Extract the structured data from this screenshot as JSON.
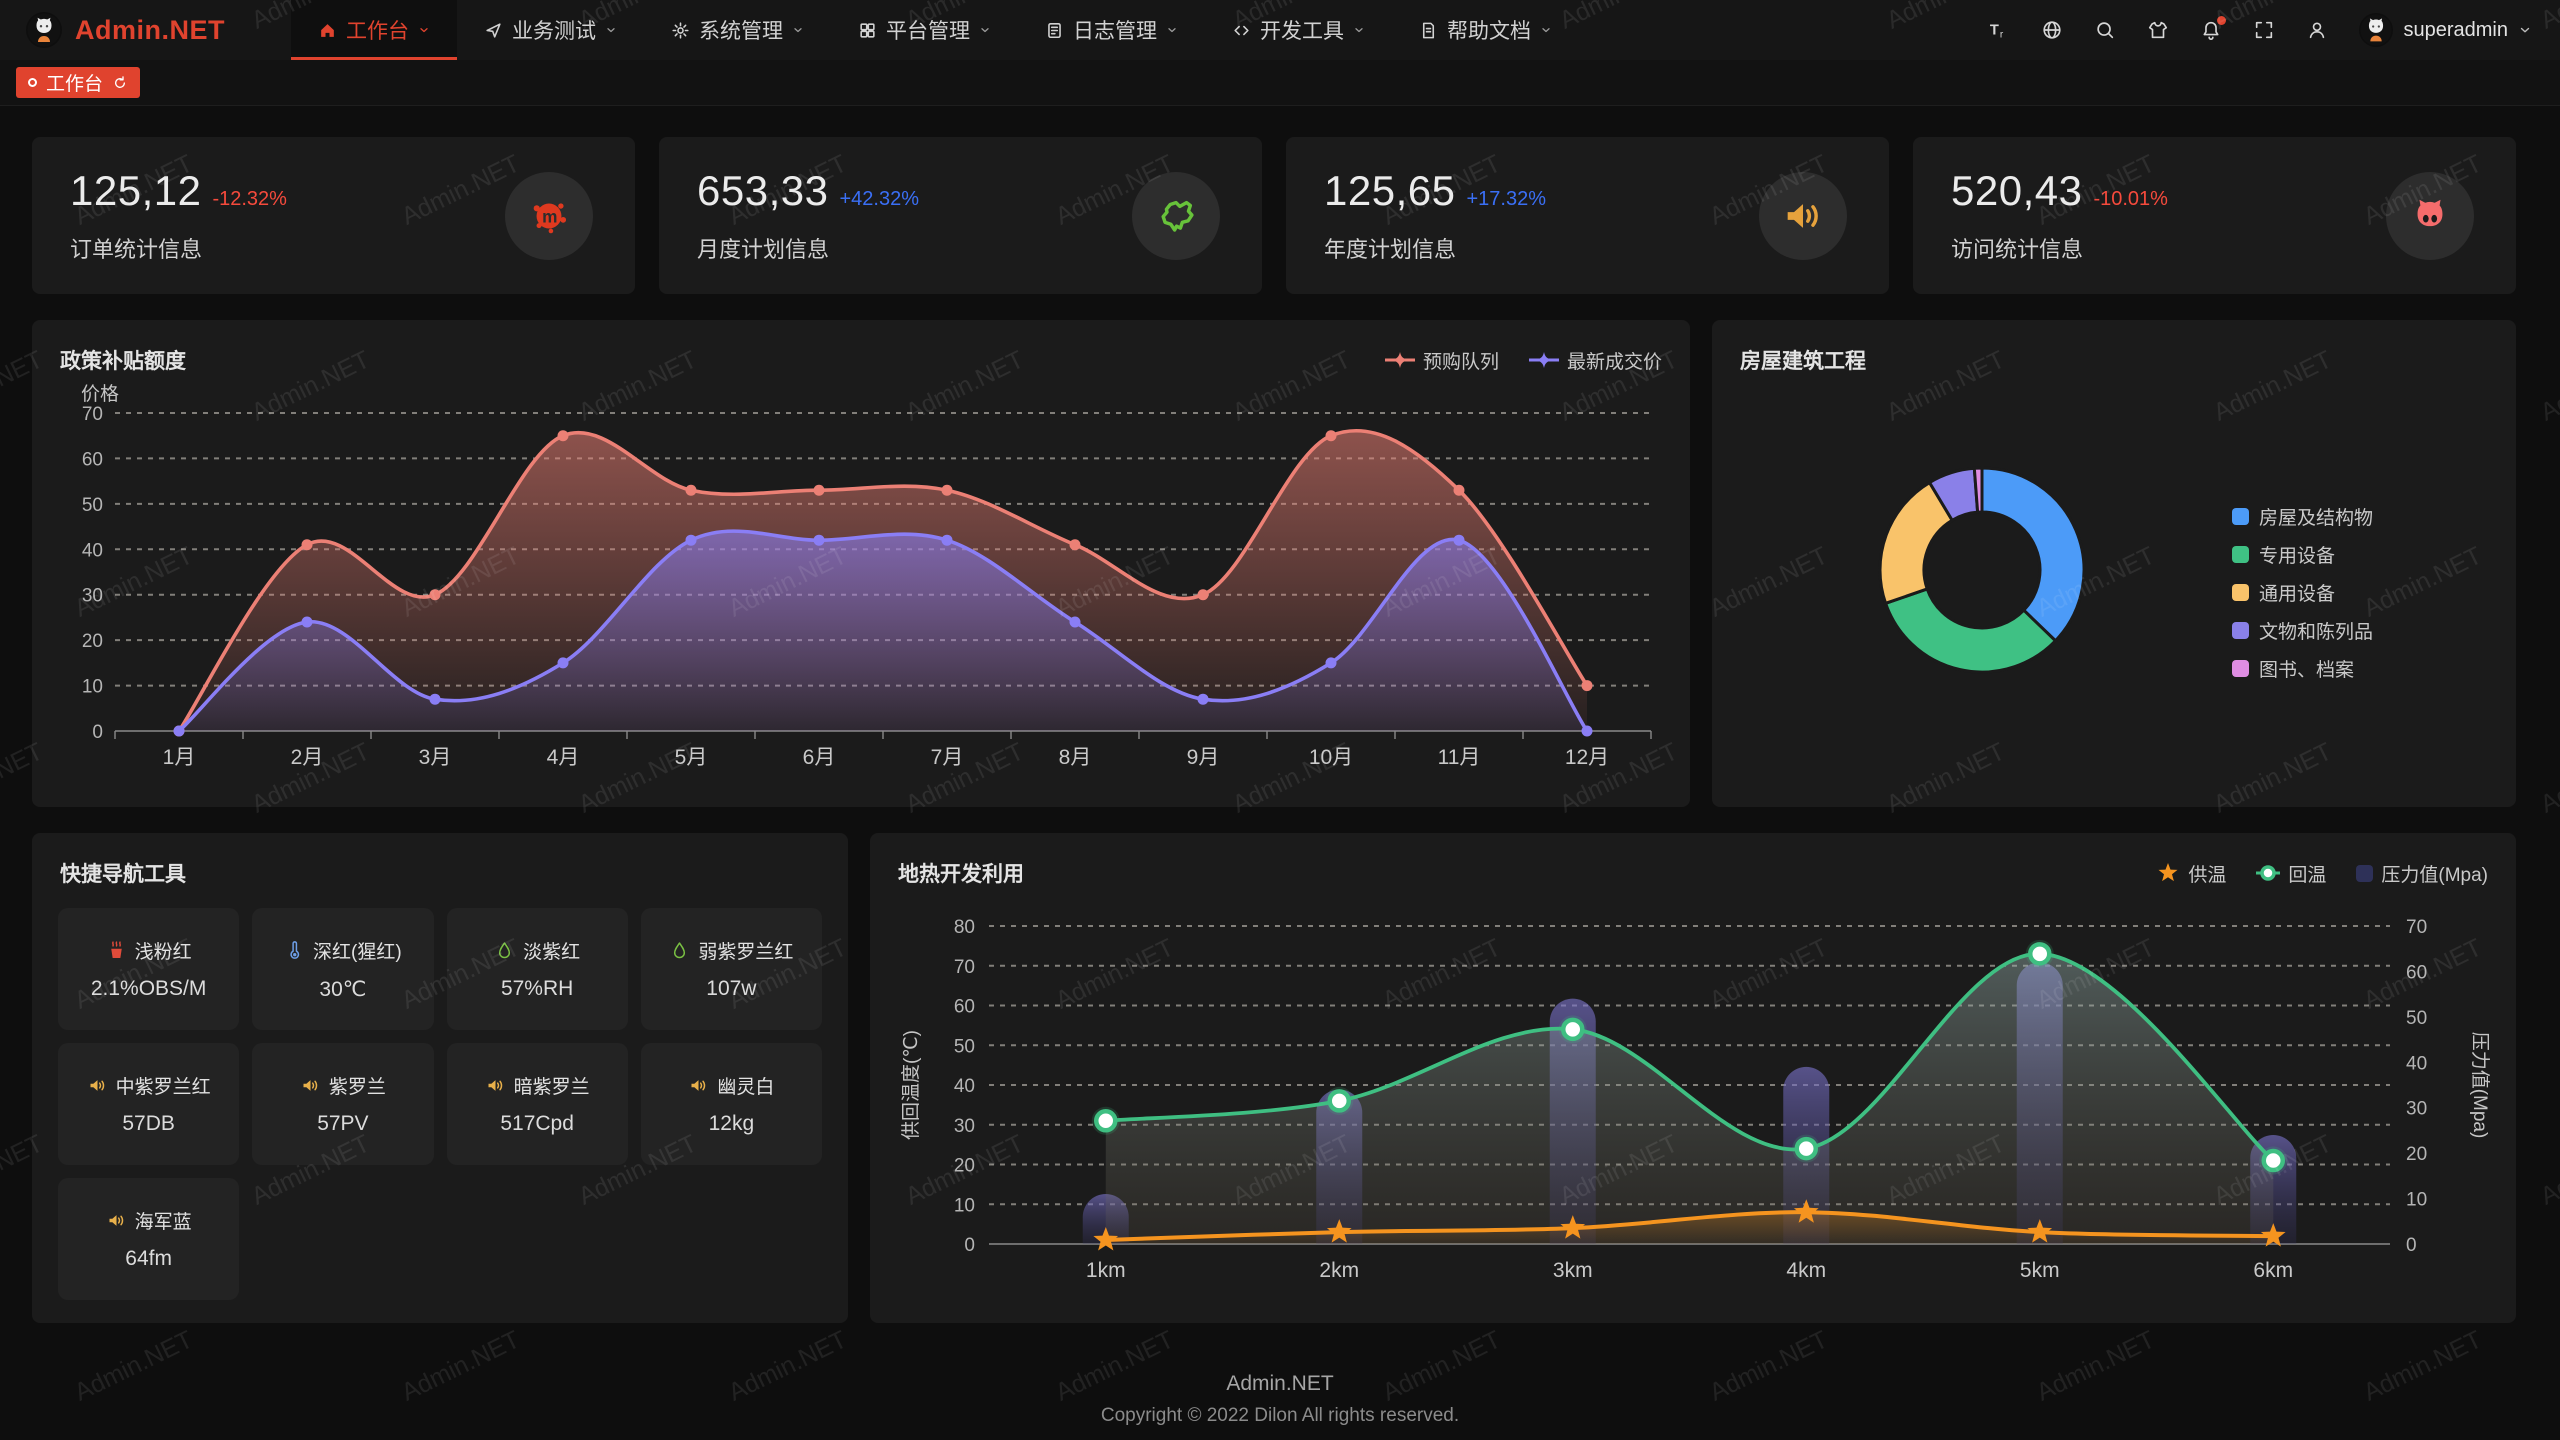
{
  "navbar": {
    "logo_text": "Admin.NET",
    "menu": [
      {
        "label": "工作台",
        "icon": "home-icon",
        "active": true
      },
      {
        "label": "业务测试",
        "icon": "send-icon",
        "active": false
      },
      {
        "label": "系统管理",
        "icon": "gear-icon",
        "active": false
      },
      {
        "label": "平台管理",
        "icon": "grid-icon",
        "active": false
      },
      {
        "label": "日志管理",
        "icon": "log-icon",
        "active": false
      },
      {
        "label": "开发工具",
        "icon": "dev-icon",
        "active": false
      },
      {
        "label": "帮助文档",
        "icon": "doc-icon",
        "active": false
      }
    ],
    "right_icons": [
      "font-size-icon",
      "language-icon",
      "search-icon",
      "theme-icon",
      "bell-icon",
      "fullscreen-icon",
      "user-icon"
    ],
    "notification_badge": true,
    "username": "superadmin"
  },
  "tabbar": {
    "tabs": [
      {
        "label": "工作台",
        "active": true
      }
    ]
  },
  "stats": [
    {
      "value": "125,12",
      "delta": "-12.32%",
      "direction": "down",
      "label": "订单统计信息",
      "icon": "paint-splat-icon",
      "icon_color": "#df391f"
    },
    {
      "value": "653,33",
      "delta": "+42.32%",
      "direction": "up",
      "label": "月度计划信息",
      "icon": "china-map-icon",
      "icon_color": "#67c23a"
    },
    {
      "value": "125,65",
      "delta": "+17.32%",
      "direction": "up",
      "label": "年度计划信息",
      "icon": "speaker-icon",
      "icon_color": "#e6a23c"
    },
    {
      "value": "520,43",
      "delta": "-10.01%",
      "direction": "down",
      "label": "访问统计信息",
      "icon": "cat-icon",
      "icon_color": "#f56c6c"
    }
  ],
  "chart_data": [
    {
      "type": "line",
      "title": "政策补贴额度",
      "ylabel": "价格",
      "ylim": [
        0,
        70
      ],
      "ytick_step": 10,
      "grid": "dashed",
      "legend_position": "top-right",
      "categories": [
        "1月",
        "2月",
        "3月",
        "4月",
        "5月",
        "6月",
        "7月",
        "8月",
        "9月",
        "10月",
        "11月",
        "12月"
      ],
      "series": [
        {
          "name": "预购队列",
          "color": "#ec8075",
          "values": [
            0,
            41,
            30,
            65,
            53,
            53,
            53,
            41,
            30,
            65,
            53,
            10
          ]
        },
        {
          "name": "最新成交价",
          "color": "#8a7ef5",
          "values": [
            0,
            24,
            7,
            15,
            42,
            42,
            42,
            24,
            7,
            15,
            42,
            0
          ]
        }
      ]
    },
    {
      "type": "pie",
      "title": "房屋建筑工程",
      "donut": true,
      "legend_position": "right",
      "labels": [
        "房屋及结构物",
        "专用设备",
        "通用设备",
        "文物和陈列品",
        "图书、档案"
      ],
      "values": [
        37.2,
        32.5,
        21.7,
        7.4,
        1.2
      ],
      "value_format": "percent",
      "colors": [
        "#4c9bf8",
        "#3fc184",
        "#f9c36a",
        "#8a80e8",
        "#df8de2"
      ]
    },
    {
      "type": "line+bar",
      "title": "地热开发利用",
      "categories": [
        "1km",
        "2km",
        "3km",
        "4km",
        "5km",
        "6km"
      ],
      "left_axis": {
        "label": "供回温度(℃)",
        "lim": [
          0,
          80
        ],
        "step": 10
      },
      "right_axis": {
        "label": "压力值(Mpa)",
        "lim": [
          0,
          70
        ],
        "step": 10
      },
      "series": [
        {
          "name": "供温",
          "type": "line",
          "axis": "left",
          "color": "#f5941f",
          "marker": "star",
          "values": [
            1,
            3,
            4,
            8,
            3,
            2
          ]
        },
        {
          "name": "回温",
          "type": "line",
          "axis": "left",
          "color": "#3fbf82",
          "marker": "circle",
          "values": [
            31,
            36,
            54,
            24,
            73,
            21
          ]
        },
        {
          "name": "压力值(Mpa)",
          "type": "bar",
          "axis": "right",
          "color": "#2e3158",
          "values": [
            11,
            34,
            54,
            39,
            62,
            24
          ]
        }
      ]
    }
  ],
  "quicknav": {
    "title": "快捷导航工具",
    "items": [
      {
        "name": "浅粉红",
        "value": "2.1%OBS/M",
        "icon": "heat-icon",
        "icon_color": "#e04b3a"
      },
      {
        "name": "深红(猩红)",
        "value": "30℃",
        "icon": "thermometer-icon",
        "icon_color": "#6e9fe8"
      },
      {
        "name": "淡紫红",
        "value": "57%RH",
        "icon": "droplet-icon",
        "icon_color": "#7ac143"
      },
      {
        "name": "弱紫罗兰红",
        "value": "107w",
        "icon": "droplet-icon",
        "icon_color": "#7ac143"
      },
      {
        "name": "中紫罗兰红",
        "value": "57DB",
        "icon": "speaker-icon",
        "icon_color": "#e8b04a"
      },
      {
        "name": "紫罗兰",
        "value": "57PV",
        "icon": "speaker-icon",
        "icon_color": "#e8b04a"
      },
      {
        "name": "暗紫罗兰",
        "value": "517Cpd",
        "icon": "speaker-icon",
        "icon_color": "#e8b04a"
      },
      {
        "name": "幽灵白",
        "value": "12kg",
        "icon": "speaker-icon",
        "icon_color": "#e8b04a"
      },
      {
        "name": "海军蓝",
        "value": "64fm",
        "icon": "speaker-icon",
        "icon_color": "#e8b04a"
      }
    ]
  },
  "footer": {
    "line1": "Admin.NET",
    "line2": "Copyright © 2022 Dilon All rights reserved."
  },
  "watermark_text": "Admin.NET",
  "colors": {
    "accent": "#e0432e",
    "delta_down": "#f54a3c",
    "delta_up": "#3a6ff5",
    "panel": "#1b1b1b",
    "page_bg": "#0e0e0e"
  }
}
